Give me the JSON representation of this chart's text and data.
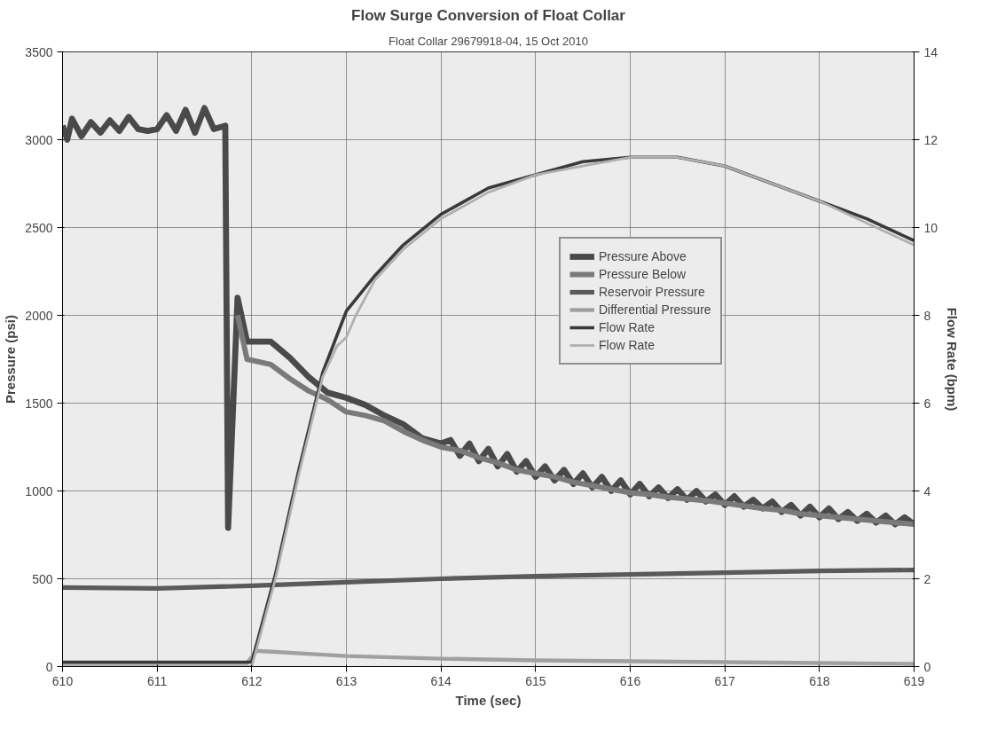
{
  "chart_data": {
    "type": "line",
    "title": "Flow Surge Conversion of Float Collar",
    "subtitle": "Float Collar 29679918-04, 15 Oct 2010",
    "xlabel": "Time (sec)",
    "ylabel": "Pressure (psi)",
    "y2label": "Flow Rate (bpm)",
    "xlim": [
      610,
      619
    ],
    "xticks": [
      610,
      611,
      612,
      613,
      614,
      615,
      616,
      617,
      618,
      619
    ],
    "ylim": [
      0,
      3500
    ],
    "yticks": [
      0,
      500,
      1000,
      1500,
      2000,
      2500,
      3000,
      3500
    ],
    "y2lim": [
      0,
      14
    ],
    "y2ticks": [
      0,
      2,
      4,
      6,
      8,
      10,
      12,
      14
    ],
    "grid": true,
    "legend": "right",
    "line_style": "solid",
    "marker": "none",
    "series": [
      {
        "name": "Pressure Above",
        "color": "#4a4a4a",
        "x": [
          610.0,
          610.05,
          610.1,
          610.2,
          610.3,
          610.4,
          610.5,
          610.6,
          610.7,
          610.8,
          610.9,
          611.0,
          611.1,
          611.2,
          611.3,
          611.4,
          611.5,
          611.6,
          611.72,
          611.75,
          611.85,
          611.95,
          612.2,
          612.4,
          612.6,
          612.8,
          613.0,
          613.2,
          613.4,
          613.6,
          613.8,
          614.0,
          614.1,
          614.2,
          614.3,
          614.4,
          614.5,
          614.6,
          614.7,
          614.8,
          614.9,
          615.0,
          615.1,
          615.2,
          615.3,
          615.4,
          615.5,
          615.6,
          615.7,
          615.8,
          615.9,
          616.0,
          616.1,
          616.2,
          616.3,
          616.4,
          616.5,
          616.6,
          616.7,
          616.8,
          616.9,
          617.0,
          617.1,
          617.2,
          617.3,
          617.4,
          617.5,
          617.6,
          617.7,
          617.8,
          617.9,
          618.0,
          618.1,
          618.2,
          618.3,
          618.4,
          618.5,
          618.6,
          618.7,
          618.8,
          618.9,
          619.0
        ],
        "values": [
          3080,
          3000,
          3120,
          3020,
          3100,
          3040,
          3110,
          3050,
          3130,
          3060,
          3050,
          3060,
          3140,
          3050,
          3170,
          3040,
          3180,
          3060,
          3080,
          790,
          2100,
          1850,
          1850,
          1760,
          1650,
          1560,
          1530,
          1490,
          1430,
          1380,
          1300,
          1270,
          1290,
          1200,
          1270,
          1170,
          1240,
          1140,
          1210,
          1110,
          1170,
          1080,
          1140,
          1060,
          1120,
          1040,
          1100,
          1020,
          1080,
          1000,
          1060,
          980,
          1040,
          970,
          1020,
          960,
          1010,
          950,
          1000,
          940,
          980,
          920,
          970,
          910,
          950,
          900,
          940,
          880,
          920,
          860,
          910,
          850,
          900,
          840,
          880,
          830,
          870,
          820,
          860,
          810,
          850,
          810
        ]
      },
      {
        "name": "Pressure Below",
        "color": "#7a7a7a",
        "x": [
          611.85,
          611.95,
          612.2,
          612.4,
          612.6,
          612.8,
          613.0,
          613.2,
          613.4,
          613.6,
          613.8,
          614.0,
          614.2,
          614.4,
          614.6,
          614.8,
          615.0,
          615.2,
          615.4,
          615.6,
          615.8,
          616.0,
          616.2,
          616.4,
          616.6,
          616.8,
          617.0,
          617.2,
          617.4,
          617.6,
          617.8,
          618.0,
          618.2,
          618.4,
          618.6,
          618.8,
          619.0
        ],
        "values": [
          2000,
          1750,
          1720,
          1640,
          1570,
          1520,
          1450,
          1430,
          1400,
          1340,
          1290,
          1250,
          1230,
          1190,
          1160,
          1120,
          1100,
          1080,
          1050,
          1030,
          1010,
          990,
          980,
          965,
          955,
          945,
          930,
          915,
          900,
          890,
          870,
          860,
          850,
          840,
          830,
          820,
          810
        ]
      },
      {
        "name": "Reservoir Pressure",
        "color": "#5a5a5a",
        "x": [
          610,
          611,
          612,
          613,
          614,
          615,
          616,
          617,
          618,
          619
        ],
        "values": [
          450,
          445,
          460,
          480,
          500,
          515,
          525,
          535,
          545,
          550
        ]
      },
      {
        "name": "Differential Pressure",
        "color": "#a0a0a0",
        "x": [
          610,
          611,
          611.95,
          612.05,
          613,
          614,
          615,
          616,
          617,
          618,
          619
        ],
        "values": [
          20,
          20,
          20,
          90,
          60,
          45,
          35,
          30,
          25,
          20,
          15
        ]
      },
      {
        "name": "Flow Rate",
        "color": "#3a3a3a",
        "axis": "y2",
        "x": [
          610,
          611,
          611.95,
          612.0,
          612.25,
          612.5,
          612.75,
          613,
          613.3,
          613.6,
          614,
          614.5,
          615,
          615.5,
          616,
          616.5,
          617,
          617.5,
          618,
          618.5,
          619
        ],
        "values": [
          0.1,
          0.1,
          0.1,
          0.1,
          2.1,
          4.5,
          6.7,
          8.1,
          8.9,
          9.6,
          10.3,
          10.9,
          11.2,
          11.5,
          11.6,
          11.6,
          11.4,
          11.0,
          10.6,
          10.2,
          9.7
        ]
      },
      {
        "name": "Flow Rate",
        "color": "#b0b0b0",
        "axis": "y2",
        "x": [
          610,
          612.0,
          612.25,
          612.5,
          612.75,
          612.9,
          613.0,
          613.1,
          613.3,
          613.6,
          614,
          614.5,
          615,
          615.5,
          616,
          616.5,
          617,
          617.5,
          618,
          618.5,
          619
        ],
        "values": [
          0,
          0,
          2.0,
          4.4,
          6.6,
          7.3,
          7.5,
          8.0,
          8.8,
          9.5,
          10.2,
          10.8,
          11.2,
          11.4,
          11.6,
          11.6,
          11.4,
          11.0,
          10.6,
          10.1,
          9.6
        ]
      }
    ]
  }
}
